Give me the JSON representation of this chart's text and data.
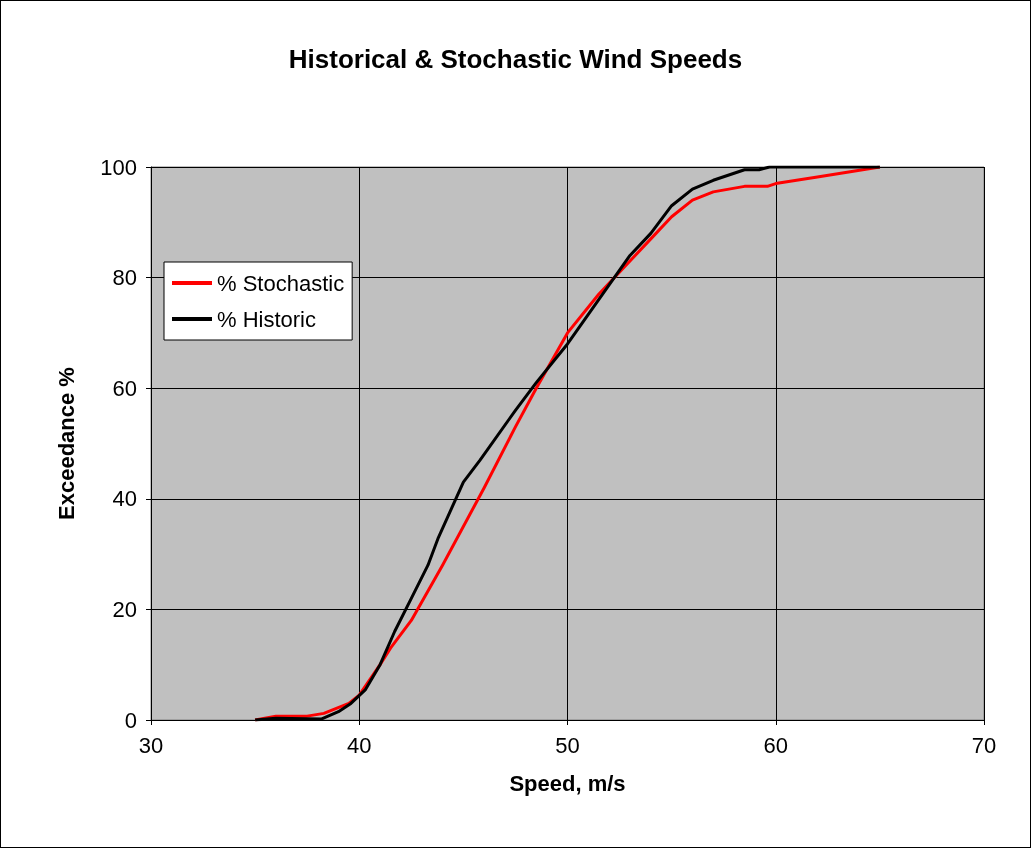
{
  "chart_data": {
    "type": "line",
    "title": "Historical & Stochastic Wind Speeds",
    "xlabel": "Speed, m/s",
    "ylabel": "Exceedance %",
    "xlim": [
      30,
      70
    ],
    "xticks": [
      30,
      40,
      50,
      60,
      70
    ],
    "ylim": [
      0,
      100
    ],
    "yticks": [
      0,
      20,
      40,
      60,
      80,
      100
    ],
    "grid": true,
    "legend": "top left",
    "marker": "none",
    "line_style": "solid",
    "series": [
      {
        "name": "% Stochastic",
        "color": "#ff0000",
        "x": [
          35,
          36,
          37.5,
          38.3,
          39.5,
          40,
          41,
          41.5,
          42.5,
          44,
          46,
          47.5,
          48.5,
          50,
          51.5,
          53,
          54,
          55,
          56,
          57,
          58.5,
          59.6,
          60,
          62,
          65
        ],
        "values": [
          0,
          0.7,
          0.7,
          1.2,
          3,
          4.5,
          10,
          13,
          18,
          28,
          42,
          53,
          60,
          70,
          77,
          83,
          87,
          91,
          94,
          95.5,
          96.5,
          96.5,
          97,
          98.2,
          100
        ]
      },
      {
        "name": "% Historic",
        "color": "#000000",
        "x": [
          35,
          36,
          38.2,
          39,
          39.6,
          40.3,
          41,
          41.7,
          42.5,
          43.3,
          43.8,
          45,
          45.8,
          47.5,
          48.5,
          50,
          51.5,
          53,
          54,
          55,
          56,
          57,
          58.5,
          59.2,
          59.7,
          65
        ],
        "values": [
          0,
          0.3,
          0.2,
          1.5,
          3,
          5.5,
          10,
          16,
          22,
          28,
          33,
          43,
          47,
          56,
          61,
          68,
          76,
          84,
          88,
          93,
          96,
          97.6,
          99.5,
          99.5,
          100,
          100
        ]
      }
    ]
  }
}
